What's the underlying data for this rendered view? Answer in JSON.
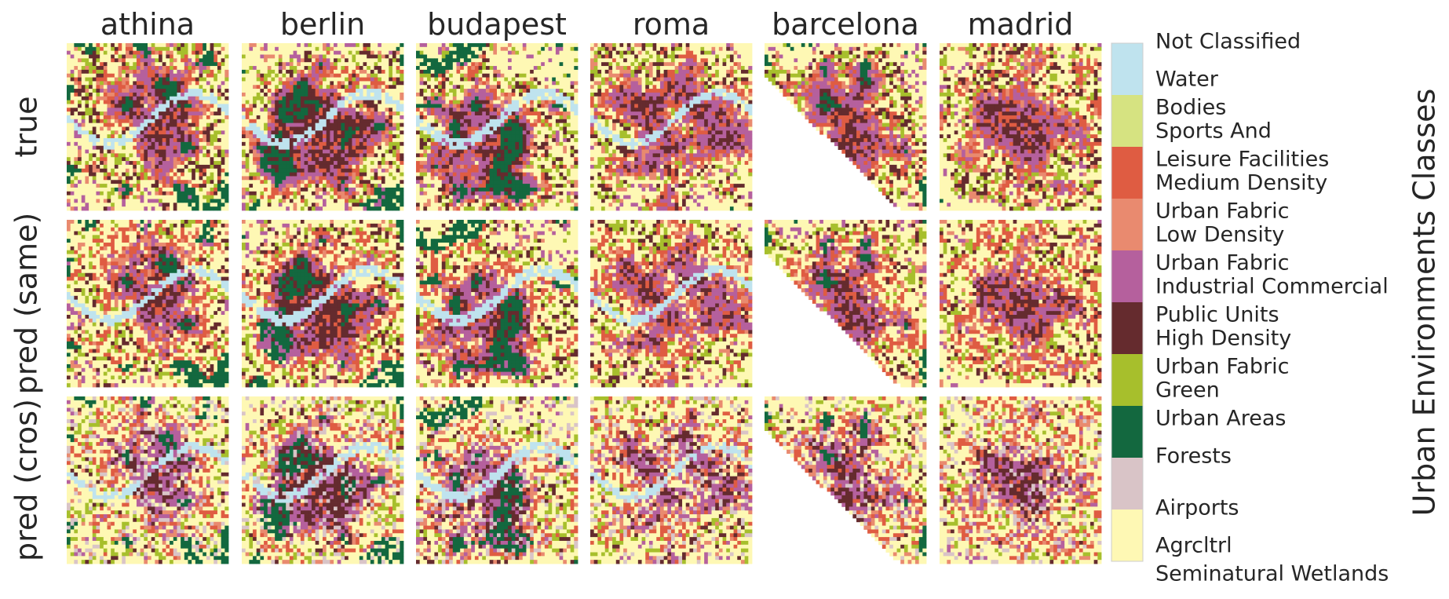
{
  "chart_data": {
    "type": "heatmap",
    "columns": [
      "athina",
      "berlin",
      "budapest",
      "roma",
      "barcelona",
      "madrid"
    ],
    "rows": [
      "true",
      "pred (same)",
      "pred (cros)"
    ],
    "colorbar": {
      "title": "Urban Environments Classes",
      "classes": [
        {
          "name": "Not Classified",
          "color": "#bfe3ee"
        },
        {
          "name": "Water Bodies",
          "color": "#d6e381"
        },
        {
          "name": "Sports And Leisure Facilities",
          "color": "#df5c42"
        },
        {
          "name": "Medium Density Urban Fabric",
          "color": "#e98a6f"
        },
        {
          "name": "Low Density Urban Fabric",
          "color": "#b5609d"
        },
        {
          "name": "Industrial Commercial Public Units",
          "color": "#652b2e"
        },
        {
          "name": "High Density Urban Fabric",
          "color": "#a7bf2c"
        },
        {
          "name": "Green Urban Areas",
          "color": "#13683f"
        },
        {
          "name": "Forests",
          "color": "#d9c4c7"
        },
        {
          "name": "Airports",
          "color": "#fef8b4"
        },
        {
          "name": "Agrcltrl Seminatural Wetlands",
          "color": ""
        }
      ],
      "tick_labels": [
        "Not Classified",
        "Water",
        "Bodies",
        "Sports And",
        "Leisure Facilities",
        "Medium Density",
        "Urban Fabric",
        "Low Density",
        "Urban Fabric",
        "Industrial Commercial",
        "Public Units",
        "High Density",
        "Urban Fabric",
        "Green",
        "Urban Areas",
        "Forests",
        "Airports",
        "Agrcltrl",
        "Seminatural Wetlands"
      ]
    },
    "grid": false,
    "legend": "colorbar right"
  }
}
